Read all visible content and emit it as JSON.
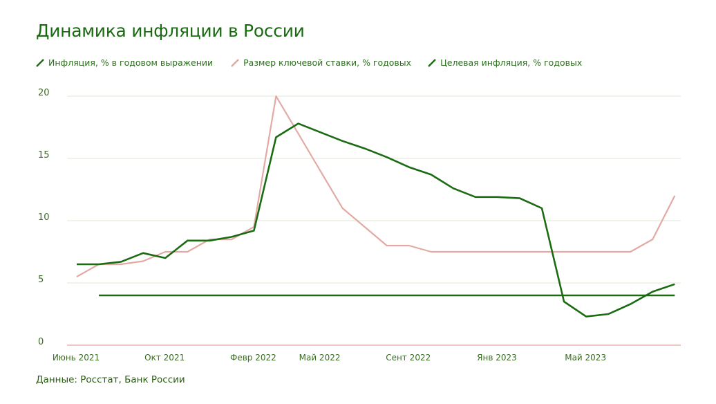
{
  "title": "Динамика инфляции в России",
  "legend": [
    {
      "label": "Инфляция, % в годовом выражении",
      "color": "#1b6b12"
    },
    {
      "label": "Размер ключевой ставки, % годовых",
      "color": "#e0a8a0"
    },
    {
      "label": "Целевая инфляция, % годовых",
      "color": "#1b6b12"
    }
  ],
  "source": "Данные: Росстат, Банк России",
  "colors": {
    "inflation": "#1b6b12",
    "key_rate": "#e2aaa2",
    "target": "#1b6b12",
    "grid": "#dde8d6",
    "baseline": "#e8b0a8"
  },
  "chart_data": {
    "type": "line",
    "title": "Динамика инфляции в России",
    "xlabel": "",
    "ylabel": "",
    "ylim": [
      0,
      20
    ],
    "yticks": [
      0,
      5,
      10,
      15,
      20
    ],
    "grid": true,
    "legend_position": "top",
    "x_tick_labels": [
      "Июнь 2021",
      "Окт 2021",
      "Февр 2022",
      "Май 2022",
      "Сент 2022",
      "Янв 2023",
      "Май 2023"
    ],
    "x": [
      "2021-06",
      "2021-07",
      "2021-08",
      "2021-09",
      "2021-10",
      "2021-11",
      "2021-12",
      "2022-01",
      "2022-02",
      "2022-03",
      "2022-04",
      "2022-05",
      "2022-06",
      "2022-07",
      "2022-08",
      "2022-09",
      "2022-10",
      "2022-11",
      "2022-12",
      "2023-01",
      "2023-02",
      "2023-03",
      "2023-04",
      "2023-05",
      "2023-06",
      "2023-07",
      "2023-08",
      "2023-09"
    ],
    "series": [
      {
        "name": "Инфляция, % в годовом выражении",
        "values": [
          6.5,
          6.5,
          6.7,
          7.4,
          7.0,
          8.4,
          8.4,
          8.7,
          9.2,
          16.7,
          17.8,
          17.1,
          16.4,
          15.8,
          15.1,
          14.3,
          13.7,
          12.6,
          11.9,
          11.9,
          11.8,
          11.0,
          3.5,
          2.3,
          2.5,
          3.3,
          4.3,
          4.9
        ]
      },
      {
        "name": "Размер ключевой ставки, % годовых",
        "values": [
          5.5,
          6.5,
          6.5,
          6.75,
          7.5,
          7.5,
          8.5,
          8.5,
          9.5,
          20.0,
          17.0,
          14.0,
          11.0,
          9.5,
          8.0,
          8.0,
          7.5,
          7.5,
          7.5,
          7.5,
          7.5,
          7.5,
          7.5,
          7.5,
          7.5,
          7.5,
          8.5,
          12.0
        ]
      },
      {
        "name": "Целевая инфляция, % годовых",
        "values": [
          null,
          4.0,
          4.0,
          4.0,
          4.0,
          4.0,
          4.0,
          4.0,
          4.0,
          4.0,
          4.0,
          4.0,
          4.0,
          4.0,
          4.0,
          4.0,
          4.0,
          4.0,
          4.0,
          4.0,
          4.0,
          4.0,
          4.0,
          4.0,
          4.0,
          4.0,
          4.0,
          4.0
        ]
      }
    ]
  }
}
